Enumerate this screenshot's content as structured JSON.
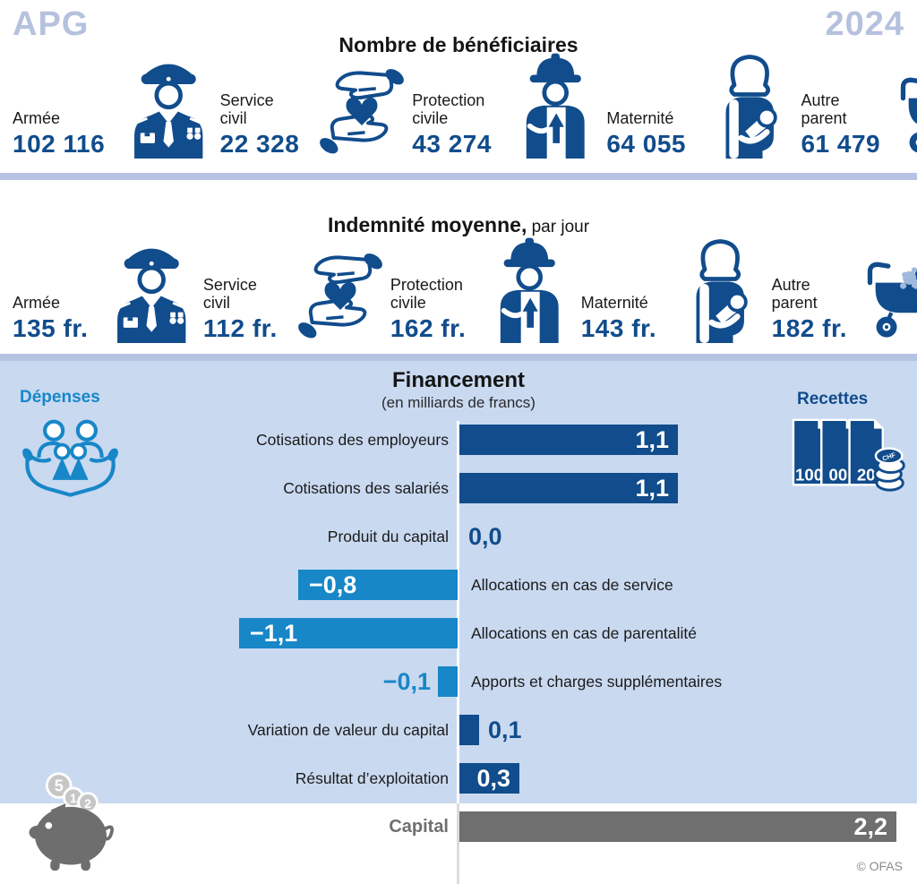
{
  "header": {
    "brand": "APG",
    "year": "2024"
  },
  "beneficiaries": {
    "title": "Nombre de bénéficiaires",
    "items": [
      {
        "label": "Armée",
        "value": "102 116",
        "icon": "military-officer"
      },
      {
        "label": "Service civil",
        "value": "22 328",
        "icon": "hands-heart"
      },
      {
        "label": "Protection civile",
        "value": "43 274",
        "icon": "civil-protection-worker"
      },
      {
        "label": "Maternité",
        "value": "64 055",
        "icon": "mother-with-baby"
      },
      {
        "label": "Autre parent",
        "value": "61 479",
        "icon": "baby-pram"
      }
    ]
  },
  "allowance": {
    "title": "Indemnité moyenne,",
    "title_suffix": " par jour",
    "items": [
      {
        "label": "Armée",
        "value": "135 fr.",
        "icon": "military-officer"
      },
      {
        "label": "Service civil",
        "value": "112 fr.",
        "icon": "hands-heart"
      },
      {
        "label": "Protection civile",
        "value": "162 fr.",
        "icon": "civil-protection-worker"
      },
      {
        "label": "Maternité",
        "value": "143 fr.",
        "icon": "mother-with-baby"
      },
      {
        "label": "Autre parent",
        "value": "182 fr.",
        "icon": "baby-pram"
      }
    ]
  },
  "financing": {
    "title": "Financement",
    "subtitle": "(en milliards de francs)",
    "expenses_label": "Dépenses",
    "revenues_label": "Recettes",
    "banknote_values": [
      "100",
      "00",
      "20"
    ],
    "coin_label": "CHF",
    "piggy_coins": [
      "5",
      "1",
      "2"
    ],
    "copyright": "© OFAS"
  },
  "chart_data": {
    "type": "bar",
    "orientation": "horizontal",
    "title": "Financement",
    "unit": "milliards de francs",
    "axis": "zero-centered vertical baseline",
    "categories": [
      "Cotisations des employeurs",
      "Cotisations des salariés",
      "Produit du capital",
      "Allocations en cas de service",
      "Allocations en cas de parentalité",
      "Apports et charges supplémentaires",
      "Variation de valeur du capital",
      "Résultat d’exploitation",
      "Capital"
    ],
    "values": [
      1.1,
      1.1,
      0.0,
      -0.8,
      -1.1,
      -0.1,
      0.1,
      0.3,
      2.2
    ],
    "rows": [
      {
        "label": "Cotisations des employeurs",
        "value": 1.1,
        "display": "1,1",
        "style": "dark"
      },
      {
        "label": "Cotisations des salariés",
        "value": 1.1,
        "display": "1,1",
        "style": "dark"
      },
      {
        "label": "Produit du capital",
        "value": 0.0,
        "display": "0,0",
        "style": "dark"
      },
      {
        "label": "Allocations en cas de service",
        "value": -0.8,
        "display": "−0,8",
        "style": "light"
      },
      {
        "label": "Allocations en cas de parentalité",
        "value": -1.1,
        "display": "−1,1",
        "style": "light"
      },
      {
        "label": "Apports et charges supplémentaires",
        "value": -0.1,
        "display": "−0,1",
        "style": "light"
      },
      {
        "label": "Variation de valeur du capital",
        "value": 0.1,
        "display": "0,1",
        "style": "dark"
      },
      {
        "label": "Résultat d’exploitation",
        "value": 0.3,
        "display": "0,3",
        "style": "dark"
      },
      {
        "label": "Capital",
        "value": 2.2,
        "display": "2,2",
        "style": "gray"
      }
    ]
  },
  "colors": {
    "dark_blue": "#114c8c",
    "light_blue": "#1787c8",
    "pale_blue_bg": "#c9d9f0",
    "divider_blue": "#b7c3e2",
    "brand_blue": "#b5c1de",
    "capital_gray": "#6f6f6f",
    "teddy_blue": "#9fb9dc"
  }
}
